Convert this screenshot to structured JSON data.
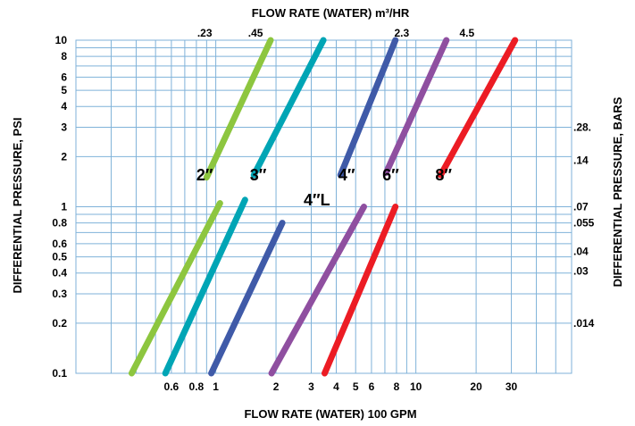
{
  "chart_data": {
    "type": "line",
    "scale": "log-log",
    "grid": true,
    "top_axis_label": "FLOW RATE (WATER) m³/HR",
    "bottom_axis_label": "FLOW RATE (WATER) 100 GPM",
    "left_axis_label": "DIFFERENTIAL PRESSURE, PSI",
    "right_axis_label": "DIFFERENTIAL PRESSURE, BARS",
    "xlim": [
      0.2,
      60
    ],
    "ylim": [
      0.1,
      10
    ],
    "bottom_ticks": [
      "0.6",
      "0.8",
      "1",
      "2",
      "3",
      "4",
      "5",
      "6",
      "8",
      "10",
      "20",
      "30"
    ],
    "bottom_tick_values": [
      0.6,
      0.8,
      1,
      2,
      3,
      4,
      5,
      6,
      8,
      10,
      20,
      30
    ],
    "left_ticks": [
      "10",
      "8",
      "6",
      "5",
      "4",
      "3",
      "2",
      "1",
      "0.8",
      "0.6",
      "0.5",
      "0.4",
      "0.3",
      "0.2",
      "0.1"
    ],
    "left_tick_values": [
      10,
      8,
      6,
      5,
      4,
      3,
      2,
      1,
      0.8,
      0.6,
      0.5,
      0.4,
      0.3,
      0.2,
      0.1
    ],
    "top_ticks": [
      ".23",
      ".45",
      "2.3",
      "4.5"
    ],
    "top_tick_positions": [
      0.88,
      1.58,
      8.5,
      18
    ],
    "right_ticks": [
      ".28.",
      ".14",
      ".07",
      ".055",
      ".04",
      ".03",
      ".014"
    ],
    "right_tick_positions": [
      3.0,
      1.9,
      1.0,
      0.8,
      0.54,
      0.41,
      0.2
    ],
    "series": [
      {
        "name": "2″",
        "color": "#8dc63f",
        "segments": [
          [
            [
              0.38,
              0.1
            ],
            [
              1.05,
              1.05
            ]
          ],
          [
            [
              0.9,
              1.5
            ],
            [
              1.88,
              10
            ]
          ]
        ],
        "label_at": [
          0.8,
          1.55
        ]
      },
      {
        "name": "3″",
        "color": "#00a5b5",
        "segments": [
          [
            [
              0.56,
              0.1
            ],
            [
              1.4,
              1.1
            ]
          ],
          [
            [
              1.55,
              1.55
            ],
            [
              3.45,
              10
            ]
          ]
        ],
        "label_at": [
          1.48,
          1.55
        ]
      },
      {
        "name": "4″",
        "color": "#3f5aa8",
        "segments": [
          [
            [
              0.95,
              0.1
            ],
            [
              2.15,
              0.8
            ]
          ],
          [
            [
              4.2,
              1.55
            ],
            [
              7.9,
              10
            ]
          ]
        ],
        "label_at": [
          4.1,
          1.55
        ]
      },
      {
        "name": "4″L",
        "color": "#3f5aa8",
        "segments": [],
        "label_at": [
          2.75,
          1.1
        ]
      },
      {
        "name": "6″",
        "color": "#8f4fa0",
        "segments": [
          [
            [
              1.9,
              0.1
            ],
            [
              5.5,
              1.0
            ]
          ],
          [
            [
              7.1,
              1.6
            ],
            [
              14.2,
              10
            ]
          ]
        ],
        "label_at": [
          6.8,
          1.55
        ]
      },
      {
        "name": "8″",
        "color": "#ec1c24",
        "segments": [
          [
            [
              3.5,
              0.1
            ],
            [
              7.9,
              1.0
            ]
          ],
          [
            [
              13.3,
              1.55
            ],
            [
              31.3,
              10
            ]
          ]
        ],
        "label_at": [
          12.5,
          1.55
        ]
      }
    ]
  }
}
